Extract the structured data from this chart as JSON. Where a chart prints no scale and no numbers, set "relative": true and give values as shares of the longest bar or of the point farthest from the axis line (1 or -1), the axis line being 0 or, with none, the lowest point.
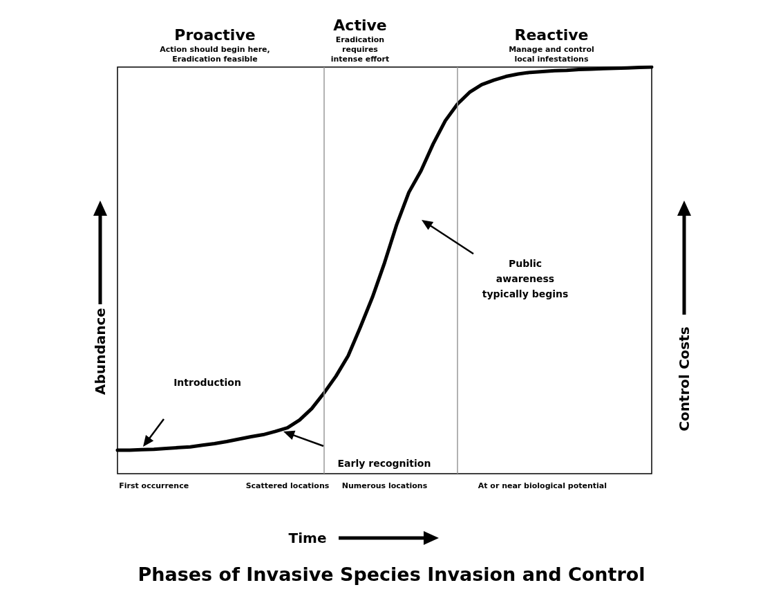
{
  "chart_data": {
    "type": "line",
    "title": "Phases of Invasive Species Invasion and Control",
    "xlabel": "Time",
    "ylabel": "Abundance",
    "y2label": "Control Costs",
    "relative": true,
    "marker": "none",
    "tick_labels": "x",
    "categories": [
      null,
      null,
      null,
      "First occurrence",
      null,
      null,
      null,
      null,
      null,
      null,
      null,
      null,
      null,
      null,
      "Scattered locations",
      null,
      null,
      null,
      null,
      null,
      null,
      null,
      "Numerous locations",
      null,
      null,
      null,
      null,
      null,
      null,
      null,
      null,
      null,
      null,
      null,
      null,
      "At or near biological potential",
      null,
      null,
      null,
      null,
      null,
      null,
      null,
      null,
      null
    ],
    "series": [
      {
        "color": "#000000",
        "values": [
          0.058,
          0.058,
          0.059,
          0.06,
          0.062,
          0.064,
          0.066,
          0.07,
          0.074,
          0.079,
          0.085,
          0.091,
          0.096,
          0.104,
          0.113,
          0.132,
          0.16,
          0.198,
          0.24,
          0.29,
          0.36,
          0.434,
          0.519,
          0.613,
          0.692,
          0.745,
          0.811,
          0.868,
          0.909,
          0.938,
          0.957,
          0.968,
          0.977,
          0.983,
          0.987,
          0.989,
          0.991,
          0.992,
          0.994,
          0.995,
          0.996,
          0.997,
          0.998,
          0.999,
          1
        ]
      }
    ],
    "annotations": [
      "Proactive\nAction should begin here,\nEradication feasible",
      "Active\nEradication\nrequires\nintense effort",
      "Reactive\nManage and control\nlocal infestations",
      "Introduction",
      "Early recognition",
      "Public\nawareness\ntypically begins"
    ]
  }
}
